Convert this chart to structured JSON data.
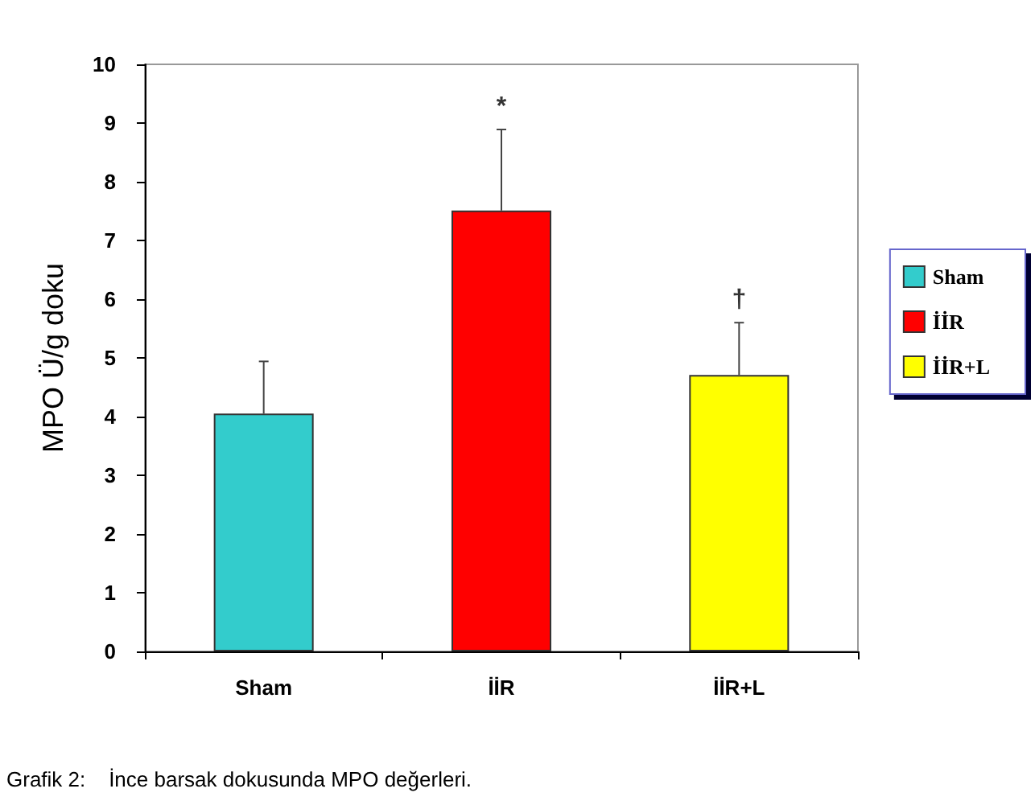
{
  "chart_data": {
    "type": "bar",
    "ylabel": "MPO Ü/g doku",
    "categories": [
      "Sham",
      "İİR",
      "İİR+L"
    ],
    "series": [
      {
        "name": "Sham",
        "color": "#33cccc",
        "values": [
          4.05,
          null,
          null
        ],
        "errors": [
          [
            4.05,
            4.94
          ],
          null,
          null
        ]
      },
      {
        "name": "İİR",
        "color": "#ff0000",
        "values": [
          null,
          7.51,
          null
        ],
        "errors": [
          null,
          [
            7.51,
            8.89
          ],
          null
        ]
      },
      {
        "name": "İİR+L",
        "color": "#ffff00",
        "values": [
          null,
          null,
          4.71
        ],
        "errors": [
          null,
          null,
          [
            4.71,
            5.6
          ]
        ]
      }
    ],
    "ylim": [
      0,
      10
    ],
    "yticks": [
      0,
      1,
      2,
      3,
      4,
      5,
      6,
      7,
      8,
      9,
      10
    ],
    "grid": false,
    "legend": "right",
    "annotations": [
      "*",
      "†",
      "Grafik 2:    İnce barsak dokusunda MPO değerleri."
    ]
  }
}
